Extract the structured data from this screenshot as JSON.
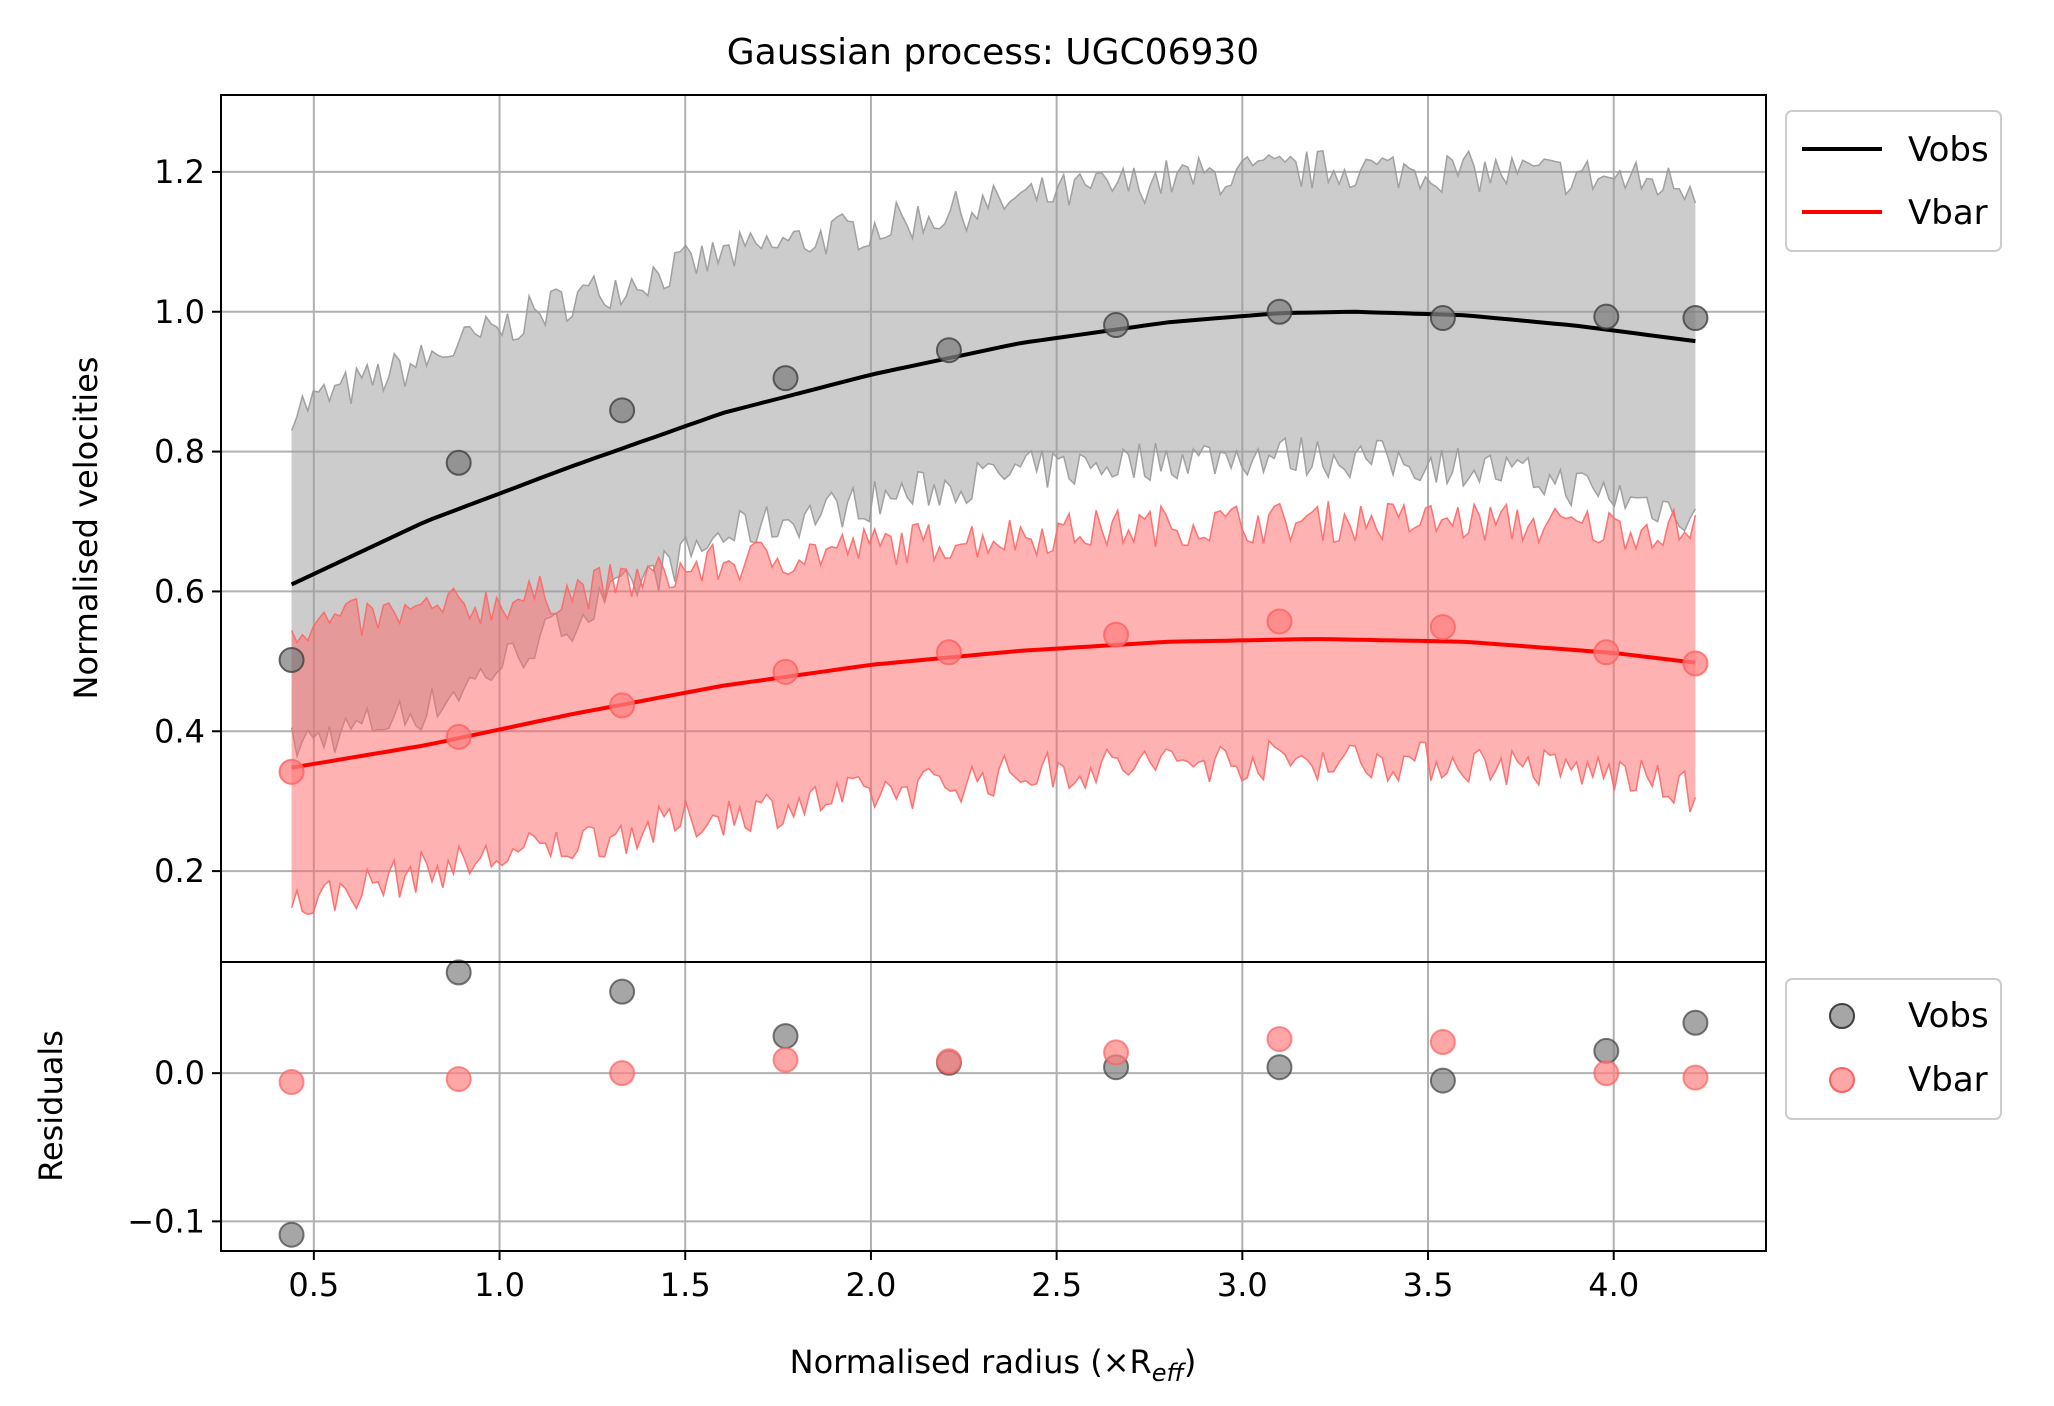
{
  "chart_data": [
    {
      "type": "line",
      "title": "Gaussian process: UGC06930",
      "xlabel": "",
      "ylabel": "Normalised velocities",
      "xlim": [
        0.25,
        4.41
      ],
      "ylim": [
        0.07,
        1.31
      ],
      "xticks": [
        0.5,
        1.0,
        1.5,
        2.0,
        2.5,
        3.0,
        3.5,
        4.0
      ],
      "yticks": [
        0.2,
        0.4,
        0.6,
        0.8,
        1.0,
        1.2
      ],
      "ytick_labels": [
        "0.2",
        "0.4",
        "0.6",
        "0.8",
        "1.0",
        "1.2"
      ],
      "grid": true,
      "legend": {
        "placement": "outside top-right",
        "entries": [
          "Vobs",
          "Vbar"
        ]
      },
      "x": [
        0.44,
        0.89,
        1.33,
        1.77,
        2.21,
        2.66,
        3.1,
        3.54,
        3.98,
        4.22
      ],
      "series": [
        {
          "name": "Vobs",
          "color": "#000000",
          "points": [
            0.502,
            0.784,
            0.859,
            0.905,
            0.945,
            0.981,
            1.0,
            0.991,
            0.993,
            0.991
          ],
          "curve_x": [
            0.44,
            0.8,
            1.2,
            1.6,
            2.0,
            2.4,
            2.8,
            3.1,
            3.3,
            3.6,
            3.9,
            4.22
          ],
          "curve_y": [
            0.61,
            0.7,
            0.78,
            0.855,
            0.91,
            0.955,
            0.985,
            0.998,
            1.0,
            0.995,
            0.98,
            0.958
          ],
          "band_lower": [
            0.38,
            0.43,
            0.56,
            0.68,
            0.73,
            0.77,
            0.79,
            0.795,
            0.79,
            0.78,
            0.75,
            0.71
          ],
          "band_upper": [
            0.86,
            0.93,
            1.02,
            1.08,
            1.12,
            1.16,
            1.19,
            1.2,
            1.205,
            1.2,
            1.195,
            1.18
          ],
          "band_color": "#999999"
        },
        {
          "name": "Vbar",
          "color": "#ff0000",
          "points": [
            0.342,
            0.392,
            0.437,
            0.485,
            0.513,
            0.538,
            0.557,
            0.549,
            0.513,
            0.497
          ],
          "curve_x": [
            0.44,
            0.8,
            1.2,
            1.6,
            2.0,
            2.4,
            2.8,
            3.2,
            3.6,
            4.0,
            4.22
          ],
          "curve_y": [
            0.348,
            0.38,
            0.425,
            0.465,
            0.495,
            0.515,
            0.528,
            0.532,
            0.528,
            0.512,
            0.498
          ],
          "band_lower": [
            0.15,
            0.2,
            0.24,
            0.28,
            0.31,
            0.34,
            0.355,
            0.36,
            0.355,
            0.34,
            0.31
          ],
          "band_upper": [
            0.55,
            0.57,
            0.6,
            0.64,
            0.665,
            0.68,
            0.695,
            0.7,
            0.7,
            0.69,
            0.69
          ],
          "band_color": "#ff6666"
        }
      ]
    },
    {
      "type": "scatter",
      "title": "",
      "xlabel": "Normalised radius (×R",
      "xlabel_sub": "eff",
      "xlabel_close": ")",
      "ylabel": "Residuals",
      "xlim": [
        0.25,
        4.41
      ],
      "ylim": [
        -0.12,
        0.075
      ],
      "xticks": [
        0.5,
        1.0,
        1.5,
        2.0,
        2.5,
        3.0,
        3.5,
        4.0
      ],
      "xtick_labels": [
        "0.5",
        "1.0",
        "1.5",
        "2.0",
        "2.5",
        "3.0",
        "3.5",
        "4.0"
      ],
      "yticks": [
        0.0,
        -0.1
      ],
      "ytick_labels": [
        "0.0",
        "−0.1"
      ],
      "grid": true,
      "legend": {
        "placement": "outside right",
        "entries": [
          "Vobs",
          "Vbar"
        ]
      },
      "x": [
        0.44,
        0.89,
        1.33,
        1.77,
        2.21,
        2.66,
        3.1,
        3.54,
        3.98,
        4.22
      ],
      "series": [
        {
          "name": "Vobs",
          "color": "#808080",
          "values": [
            -0.109,
            0.068,
            0.055,
            0.025,
            0.007,
            0.004,
            0.004,
            -0.005,
            0.015,
            0.034
          ]
        },
        {
          "name": "Vbar",
          "color": "#ff8080",
          "values": [
            -0.006,
            -0.004,
            0.0,
            0.009,
            0.008,
            0.014,
            0.023,
            0.021,
            0.0,
            -0.003
          ]
        }
      ]
    }
  ]
}
